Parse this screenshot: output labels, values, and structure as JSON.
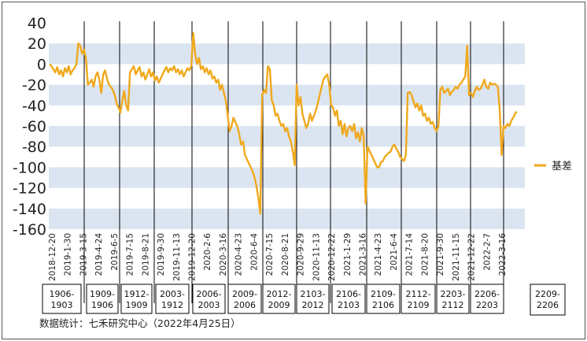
{
  "chart_data": {
    "type": "line",
    "legend": {
      "label": "基差",
      "position": "right",
      "color": "#f0a81c"
    },
    "source_note": "数据统计：七禾研究中心（2022年4月25日）",
    "y_axis": {
      "min": -160,
      "max": 40,
      "step": 20,
      "ticks": [
        "40",
        "20",
        "0",
        "-20",
        "-40",
        "-60",
        "-80",
        "-100",
        "-120",
        "-140",
        "-160"
      ]
    },
    "x_axis": {
      "ticks": [
        "2018-12-20",
        "2019-1-30",
        "2019-3-15",
        "2019-4-24",
        "2019-6-5",
        "2019-7-15",
        "2019-8-21",
        "2019-9-30",
        "2019-11-13",
        "2019-12-20",
        "2020-2-6",
        "2020-3-16",
        "2020-4-23",
        "2020-6-4",
        "2020-7-15",
        "2020-8-21",
        "2020-9-29",
        "2020-11-13",
        "2020-12-22",
        "2021-1-29",
        "2021-3-16",
        "2021-4-23",
        "2021-6-4",
        "2021-7-14",
        "2021-8-20",
        "2021-9-30",
        "2021-11-15",
        "2021-12-22",
        "2022-2-7",
        "2022-3-16"
      ]
    },
    "bands": {
      "color": "#dbe5f1"
    },
    "contracts": [
      {
        "label": [
          "1906-",
          "1903"
        ]
      },
      {
        "label": [
          "1909-",
          "1906"
        ]
      },
      {
        "label": [
          "1912-",
          "1909"
        ]
      },
      {
        "label": [
          "2003-",
          "1912"
        ]
      },
      {
        "label": [
          "2006-",
          "2003"
        ]
      },
      {
        "label": [
          "2009-",
          "2006"
        ]
      },
      {
        "label": [
          "2012-",
          "2009"
        ]
      },
      {
        "label": [
          "2103-",
          "2012"
        ]
      },
      {
        "label": [
          "2106-",
          "2103"
        ]
      },
      {
        "label": [
          "2109-",
          "2106"
        ]
      },
      {
        "label": [
          "2112-",
          "2109"
        ]
      },
      {
        "label": [
          "2203-",
          "2112"
        ]
      },
      {
        "label": [
          "2206-",
          "2203"
        ]
      },
      {
        "label": [
          "2209-",
          "2206"
        ]
      }
    ],
    "series": [
      {
        "name": "基差",
        "color": "#f0a81c",
        "values": [
          0,
          -2,
          -5,
          -8,
          -3,
          -10,
          -6,
          -12,
          -4,
          -8,
          -2,
          -10,
          -6,
          -4,
          0,
          20,
          18,
          10,
          14,
          5,
          -20,
          -18,
          -15,
          -22,
          -12,
          -8,
          -15,
          -28,
          -10,
          -6,
          -14,
          -20,
          -22,
          -25,
          -30,
          -38,
          -42,
          -47,
          -35,
          -26,
          -40,
          -45,
          -8,
          -5,
          -2,
          -10,
          -6,
          -3,
          -12,
          -8,
          -15,
          -10,
          -5,
          -12,
          -8,
          -16,
          -12,
          -18,
          -14,
          -10,
          -6,
          -3,
          -8,
          -4,
          -6,
          -2,
          -8,
          -5,
          -10,
          -6,
          -12,
          -8,
          -4,
          -6,
          -2,
          30,
          10,
          0,
          6,
          -5,
          -2,
          -8,
          -4,
          -10,
          -6,
          -14,
          -12,
          -18,
          -15,
          -25,
          -20,
          -28,
          -35,
          -50,
          -65,
          -60,
          -52,
          -56,
          -60,
          -68,
          -78,
          -75,
          -88,
          -92,
          -96,
          -100,
          -104,
          -110,
          -118,
          -130,
          -145,
          -30,
          -25,
          -28,
          -2,
          -5,
          -35,
          -40,
          -50,
          -48,
          -55,
          -60,
          -58,
          -65,
          -62,
          -70,
          -75,
          -85,
          -98,
          -20,
          -40,
          -32,
          -48,
          -55,
          -62,
          -58,
          -48,
          -55,
          -50,
          -45,
          -38,
          -30,
          -22,
          -15,
          -12,
          -10,
          -20,
          -40,
          -42,
          -50,
          -45,
          -60,
          -55,
          -68,
          -58,
          -70,
          -62,
          -60,
          -65,
          -58,
          -72,
          -66,
          -75,
          -62,
          -70,
          -135,
          -80,
          -84,
          -88,
          -92,
          -96,
          -100,
          -100,
          -95,
          -94,
          -90,
          -88,
          -86,
          -85,
          -80,
          -78,
          -82,
          -85,
          -90,
          -92,
          -94,
          -88,
          -28,
          -27,
          -30,
          -36,
          -42,
          -38,
          -45,
          -40,
          -50,
          -48,
          -55,
          -52,
          -58,
          -56,
          -62,
          -65,
          -60,
          -25,
          -22,
          -28,
          -26,
          -24,
          -30,
          -27,
          -25,
          -22,
          -24,
          -20,
          -18,
          -15,
          -12,
          18,
          -30,
          -28,
          -32,
          -26,
          -22,
          -25,
          -24,
          -20,
          -15,
          -22,
          -24,
          -18,
          -20,
          -19,
          -20,
          -22,
          -45,
          -88,
          -60,
          -62,
          -58,
          -60,
          -55,
          -52,
          -48,
          -46
        ]
      }
    ]
  }
}
